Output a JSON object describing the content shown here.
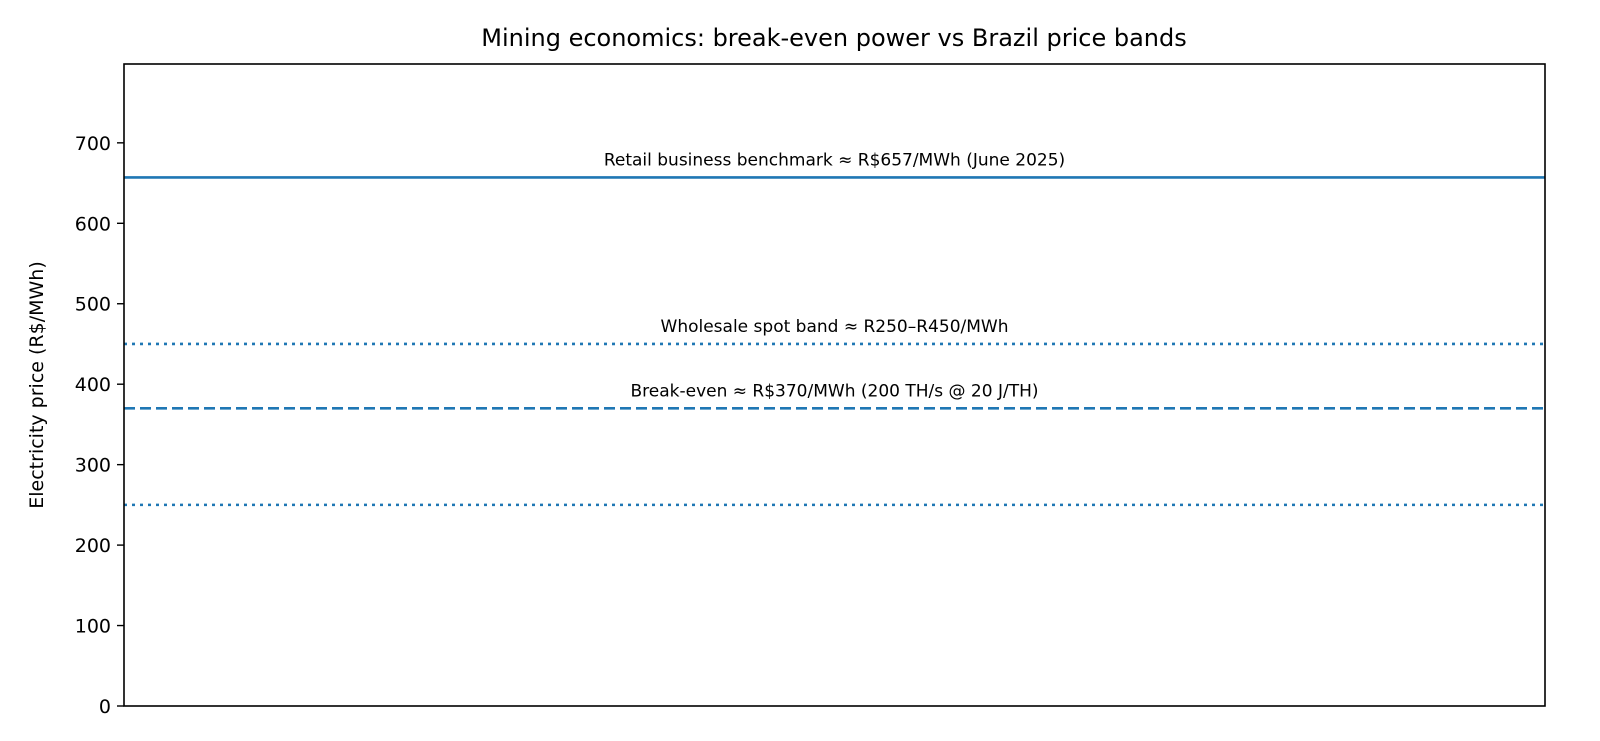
{
  "chart_data": {
    "type": "line",
    "title": "Mining economics: break-even power vs Brazil price bands",
    "xlabel": "",
    "ylabel": "Electricity price (R$/MWh)",
    "ylim": [
      0,
      798
    ],
    "yticks": [
      0,
      100,
      200,
      300,
      400,
      500,
      600,
      700
    ],
    "xticks": [],
    "grid": false,
    "color": "#1f77b4",
    "hlines": [
      {
        "y": 657,
        "style": "solid",
        "label": "Retail business benchmark ≈ R$657/MWh (June 2025)"
      },
      {
        "y": 450,
        "style": "dotted",
        "label": "Wholesale spot band ≈ R250–R450/MWh"
      },
      {
        "y": 370,
        "style": "dashed",
        "label": "Break-even ≈ R$370/MWh (200 TH/s @ 20 J/TH)"
      },
      {
        "y": 250,
        "style": "dotted",
        "label": ""
      }
    ]
  }
}
